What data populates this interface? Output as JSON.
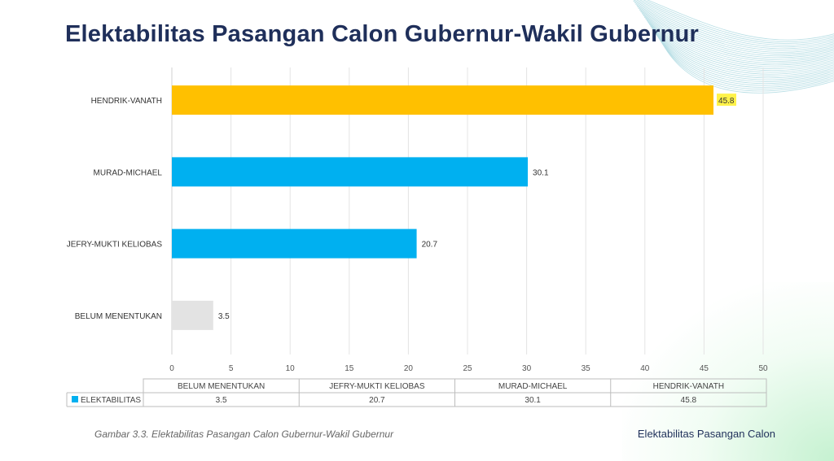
{
  "title": "Elektabilitas Pasangan Calon Gubernur-Wakil Gubernur",
  "caption": "Gambar 3.3. Elektabilitas Pasangan Calon Gubernur-Wakil Gubernur",
  "footer_label": "Elektabilitas Pasangan Calon",
  "colors": {
    "highlight": "#ffc000",
    "primary": "#00b0f0",
    "undecided": "#e3e3e3",
    "label_highlight": "#fff24a"
  },
  "chart_data": {
    "type": "bar",
    "orientation": "horizontal",
    "categories": [
      "HENDRIK-VANATH",
      "MURAD-MICHAEL",
      "JEFRY-MUKTI KELIOBAS",
      "BELUM MENENTUKAN"
    ],
    "series": [
      {
        "name": "ELEKTABILITAS",
        "values": [
          45.8,
          30.1,
          20.7,
          3.5
        ]
      }
    ],
    "value_labels": [
      "45.8",
      "30.1",
      "20.7",
      "3.5"
    ],
    "xlim": [
      0,
      50
    ],
    "xticks": [
      "0",
      "5",
      "10",
      "15",
      "20",
      "25",
      "30",
      "35",
      "40",
      "45",
      "50"
    ],
    "grid": true,
    "legend": "none",
    "data_table": {
      "headers": [
        "BELUM MENENTUKAN",
        "JEFRY-MUKTI KELIOBAS",
        "MURAD-MICHAEL",
        "HENDRIK-VANATH"
      ],
      "row_label": "ELEKTABILITAS",
      "values": [
        "3.5",
        "20.7",
        "30.1",
        "45.8"
      ]
    }
  }
}
